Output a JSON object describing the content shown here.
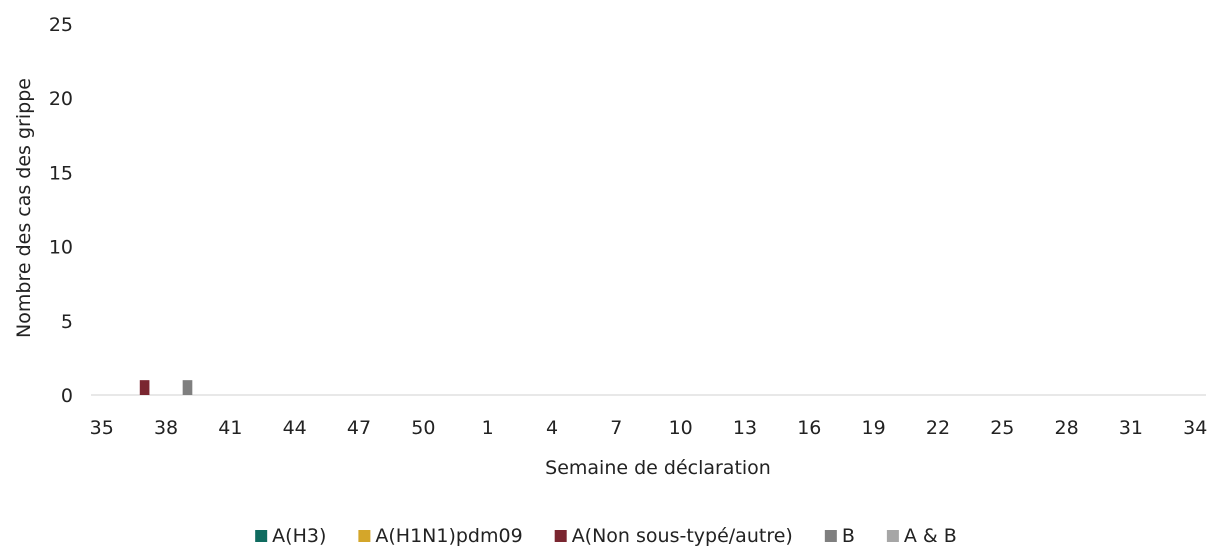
{
  "chart_data": {
    "type": "bar",
    "xlabel": "Semaine de déclaration",
    "ylabel": "Nombre des cas des grippe",
    "ylim": [
      0,
      25
    ],
    "yticks": [
      "0",
      "5",
      "10",
      "15",
      "20",
      "25"
    ],
    "tick_labels": [
      "35",
      "38",
      "41",
      "44",
      "47",
      "50",
      "1",
      "4",
      "7",
      "10",
      "13",
      "16",
      "19",
      "22",
      "25",
      "28",
      "31",
      "34"
    ],
    "weeks": [
      35,
      36,
      37,
      38,
      39,
      40,
      41,
      42,
      43,
      44,
      45,
      46,
      47,
      48,
      49,
      50,
      51,
      52,
      1,
      2,
      3,
      4,
      5,
      6,
      7,
      8,
      9,
      10,
      11,
      12,
      13,
      14,
      15,
      16,
      17,
      18,
      19,
      20,
      21,
      22,
      23,
      24,
      25,
      26,
      27,
      28,
      29,
      30,
      31,
      32,
      33,
      34
    ],
    "grid": false,
    "legend_position": "bottom",
    "series": [
      {
        "name": "A(H3)",
        "color": "#0f6b5f",
        "points": []
      },
      {
        "name": "A(H1N1)pdm09",
        "color": "#d4a62a",
        "points": []
      },
      {
        "name": "A(Non sous-typé/autre)",
        "color": "#7a2630",
        "points": [
          {
            "week": 37,
            "value": 1
          }
        ]
      },
      {
        "name": "B",
        "color": "#7f7f7f",
        "points": [
          {
            "week": 39,
            "value": 1
          }
        ]
      },
      {
        "name": "A & B",
        "color": "#a6a6a6",
        "points": []
      }
    ]
  }
}
